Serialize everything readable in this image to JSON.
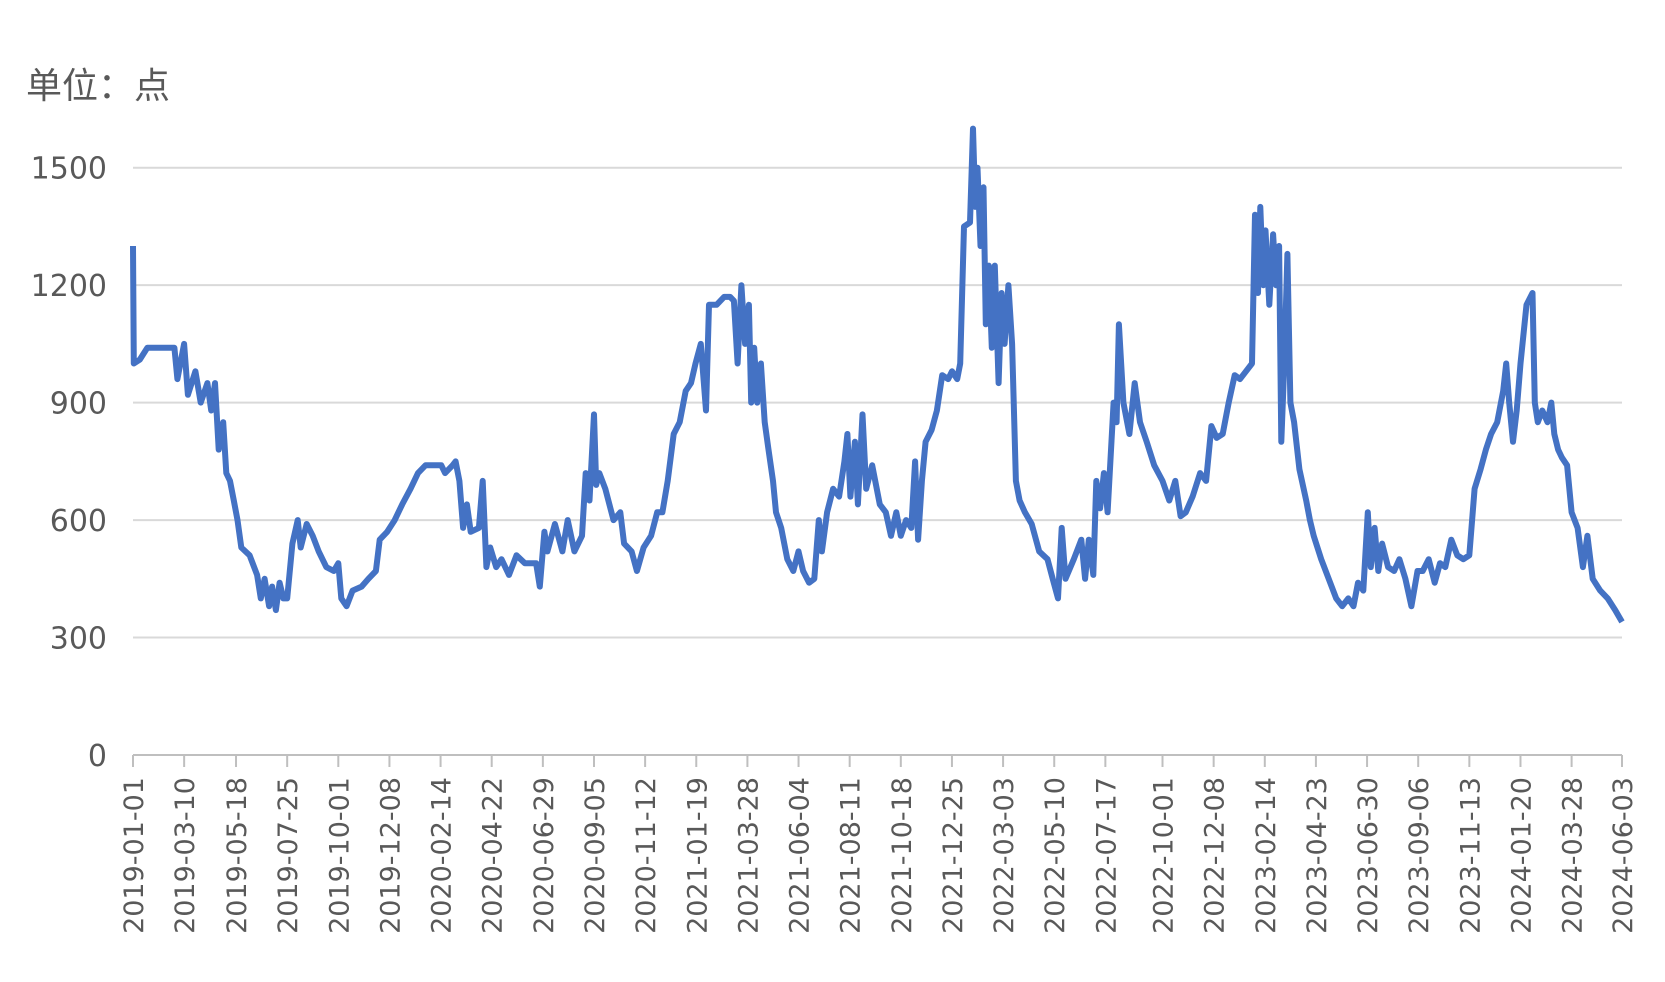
{
  "chart_data": {
    "type": "line",
    "y_label": "单位：点",
    "color": "#4472c4",
    "grid": true,
    "ylim": [
      0,
      1650
    ],
    "yticks": [
      0,
      300,
      600,
      900,
      1200,
      1500
    ],
    "xlim": [
      "2019-01-01",
      "2024-06-03"
    ],
    "xticks": [
      "2019-01-01",
      "2019-03-10",
      "2019-05-18",
      "2019-07-25",
      "2019-10-01",
      "2019-12-08",
      "2020-02-14",
      "2020-04-22",
      "2020-06-29",
      "2020-09-05",
      "2020-11-12",
      "2021-01-19",
      "2021-03-28",
      "2021-06-04",
      "2021-08-11",
      "2021-10-18",
      "2021-12-25",
      "2022-03-03",
      "2022-05-10",
      "2022-07-17",
      "2022-10-01",
      "2022-12-08",
      "2023-02-14",
      "2023-04-23",
      "2023-06-30",
      "2023-09-06",
      "2023-11-13",
      "2024-01-20",
      "2024-03-28",
      "2024-06-03"
    ],
    "x": [
      "2019-01-01",
      "2019-01-02",
      "2019-01-10",
      "2019-01-20",
      "2019-02-10",
      "2019-02-25",
      "2019-03-01",
      "2019-03-10",
      "2019-03-15",
      "2019-03-25",
      "2019-04-01",
      "2019-04-10",
      "2019-04-15",
      "2019-04-20",
      "2019-04-25",
      "2019-05-01",
      "2019-05-05",
      "2019-05-10",
      "2019-05-15",
      "2019-05-20",
      "2019-05-25",
      "2019-06-05",
      "2019-06-15",
      "2019-06-20",
      "2019-06-25",
      "2019-07-01",
      "2019-07-05",
      "2019-07-10",
      "2019-07-15",
      "2019-07-20",
      "2019-07-25",
      "2019-08-01",
      "2019-08-08",
      "2019-08-12",
      "2019-08-20",
      "2019-08-28",
      "2019-09-05",
      "2019-09-15",
      "2019-09-25",
      "2019-10-01",
      "2019-10-05",
      "2019-10-12",
      "2019-10-20",
      "2019-11-01",
      "2019-11-10",
      "2019-11-20",
      "2019-11-25",
      "2019-12-05",
      "2019-12-15",
      "2019-12-25",
      "2020-01-05",
      "2020-01-15",
      "2020-01-25",
      "2020-02-05",
      "2020-02-15",
      "2020-02-20",
      "2020-03-01",
      "2020-03-05",
      "2020-03-10",
      "2020-03-15",
      "2020-03-20",
      "2020-03-25",
      "2020-04-05",
      "2020-04-10",
      "2020-04-15",
      "2020-04-20",
      "2020-04-28",
      "2020-05-05",
      "2020-05-15",
      "2020-05-25",
      "2020-06-05",
      "2020-06-20",
      "2020-06-25",
      "2020-07-01",
      "2020-07-05",
      "2020-07-15",
      "2020-07-25",
      "2020-08-01",
      "2020-08-10",
      "2020-08-20",
      "2020-08-25",
      "2020-08-30",
      "2020-09-05",
      "2020-09-08",
      "2020-09-12",
      "2020-09-20",
      "2020-10-01",
      "2020-10-10",
      "2020-10-15",
      "2020-10-25",
      "2020-11-01",
      "2020-11-10",
      "2020-11-20",
      "2020-11-28",
      "2020-12-05",
      "2020-12-12",
      "2020-12-20",
      "2020-12-28",
      "2021-01-05",
      "2021-01-12",
      "2021-01-18",
      "2021-01-25",
      "2021-02-01",
      "2021-02-05",
      "2021-02-15",
      "2021-02-25",
      "2021-03-05",
      "2021-03-10",
      "2021-03-15",
      "2021-03-20",
      "2021-03-25",
      "2021-03-30",
      "2021-04-02",
      "2021-04-06",
      "2021-04-10",
      "2021-04-15",
      "2021-04-20",
      "2021-04-25",
      "2021-05-01",
      "2021-05-05",
      "2021-05-12",
      "2021-05-20",
      "2021-05-28",
      "2021-06-04",
      "2021-06-10",
      "2021-06-18",
      "2021-06-25",
      "2021-07-01",
      "2021-07-05",
      "2021-07-12",
      "2021-07-20",
      "2021-07-28",
      "2021-08-04",
      "2021-08-08",
      "2021-08-12",
      "2021-08-18",
      "2021-08-22",
      "2021-08-28",
      "2021-09-02",
      "2021-09-10",
      "2021-09-20",
      "2021-09-28",
      "2021-10-05",
      "2021-10-12",
      "2021-10-18",
      "2021-10-25",
      "2021-11-01",
      "2021-11-06",
      "2021-11-10",
      "2021-11-15",
      "2021-11-20",
      "2021-11-28",
      "2021-12-05",
      "2021-12-12",
      "2021-12-20",
      "2021-12-25",
      "2022-01-01",
      "2022-01-05",
      "2022-01-10",
      "2022-01-18",
      "2022-01-22",
      "2022-01-25",
      "2022-01-28",
      "2022-02-01",
      "2022-02-05",
      "2022-02-08",
      "2022-02-12",
      "2022-02-16",
      "2022-02-20",
      "2022-02-25",
      "2022-03-01",
      "2022-03-05",
      "2022-03-10",
      "2022-03-15",
      "2022-03-20",
      "2022-03-25",
      "2022-04-01",
      "2022-04-10",
      "2022-04-20",
      "2022-05-01",
      "2022-05-08",
      "2022-05-15",
      "2022-05-20",
      "2022-05-25",
      "2022-06-05",
      "2022-06-15",
      "2022-06-20",
      "2022-06-25",
      "2022-07-01",
      "2022-07-05",
      "2022-07-10",
      "2022-07-15",
      "2022-07-20",
      "2022-07-28",
      "2022-08-01",
      "2022-08-04",
      "2022-08-10",
      "2022-08-18",
      "2022-08-25",
      "2022-09-01",
      "2022-09-10",
      "2022-09-20",
      "2022-10-01",
      "2022-10-10",
      "2022-10-18",
      "2022-10-25",
      "2022-11-01",
      "2022-11-10",
      "2022-11-20",
      "2022-11-28",
      "2022-12-05",
      "2022-12-12",
      "2022-12-20",
      "2022-12-28",
      "2023-01-05",
      "2023-01-12",
      "2023-01-20",
      "2023-01-28",
      "2023-02-01",
      "2023-02-05",
      "2023-02-08",
      "2023-02-12",
      "2023-02-15",
      "2023-02-20",
      "2023-02-25",
      "2023-03-01",
      "2023-03-05",
      "2023-03-08",
      "2023-03-12",
      "2023-03-16",
      "2023-03-20",
      "2023-03-25",
      "2023-04-01",
      "2023-04-10",
      "2023-04-15",
      "2023-04-20",
      "2023-04-30",
      "2023-05-10",
      "2023-05-20",
      "2023-05-28",
      "2023-06-05",
      "2023-06-12",
      "2023-06-18",
      "2023-06-25",
      "2023-07-01",
      "2023-07-05",
      "2023-07-10",
      "2023-07-15",
      "2023-07-20",
      "2023-07-28",
      "2023-08-05",
      "2023-08-12",
      "2023-08-20",
      "2023-08-28",
      "2023-09-05",
      "2023-09-12",
      "2023-09-20",
      "2023-09-28",
      "2023-10-05",
      "2023-10-12",
      "2023-10-20",
      "2023-10-28",
      "2023-11-05",
      "2023-11-13",
      "2023-11-20",
      "2023-11-28",
      "2023-12-05",
      "2023-12-12",
      "2023-12-20",
      "2023-12-28",
      "2024-01-01",
      "2024-01-05",
      "2024-01-10",
      "2024-01-15",
      "2024-01-20",
      "2024-01-28",
      "2024-02-05",
      "2024-02-08",
      "2024-02-12",
      "2024-02-18",
      "2024-02-25",
      "2024-03-01",
      "2024-03-05",
      "2024-03-10",
      "2024-03-15",
      "2024-03-22",
      "2024-03-28",
      "2024-04-05",
      "2024-04-12",
      "2024-04-18",
      "2024-04-25",
      "2024-05-05",
      "2024-05-15",
      "2024-05-25",
      "2024-06-03"
    ],
    "values": [
      1300,
      1000,
      1010,
      1040,
      1040,
      1040,
      960,
      1050,
      920,
      980,
      900,
      950,
      880,
      950,
      780,
      850,
      720,
      700,
      650,
      600,
      530,
      510,
      460,
      400,
      450,
      380,
      430,
      370,
      440,
      400,
      400,
      540,
      600,
      530,
      590,
      560,
      520,
      480,
      470,
      490,
      400,
      380,
      420,
      430,
      450,
      470,
      550,
      570,
      600,
      640,
      680,
      720,
      740,
      740,
      740,
      720,
      740,
      750,
      700,
      580,
      640,
      570,
      580,
      700,
      480,
      530,
      480,
      500,
      460,
      510,
      490,
      490,
      430,
      570,
      520,
      590,
      520,
      600,
      520,
      560,
      720,
      650,
      870,
      690,
      720,
      680,
      600,
      620,
      540,
      520,
      470,
      530,
      560,
      620,
      620,
      700,
      820,
      850,
      930,
      950,
      1000,
      1050,
      880,
      1150,
      1150,
      1170,
      1170,
      1160,
      1000,
      1200,
      1050,
      1150,
      900,
      1040,
      900,
      1000,
      850,
      780,
      700,
      620,
      580,
      500,
      470,
      520,
      470,
      440,
      450,
      600,
      520,
      620,
      680,
      660,
      750,
      820,
      660,
      800,
      640,
      870,
      680,
      740,
      640,
      620,
      560,
      620,
      560,
      600,
      580,
      750,
      550,
      700,
      800,
      830,
      880,
      970,
      960,
      980,
      960,
      1000,
      1350,
      1360,
      1600,
      1400,
      1500,
      1300,
      1450,
      1100,
      1250,
      1040,
      1250,
      950,
      1180,
      1050,
      1200,
      1050,
      700,
      650,
      620,
      590,
      520,
      500,
      450,
      400,
      580,
      450,
      500,
      550,
      450,
      550,
      460,
      700,
      630,
      720,
      620,
      900,
      850,
      1100,
      900,
      820,
      950,
      850,
      800,
      740,
      700,
      650,
      700,
      610,
      620,
      660,
      720,
      700,
      840,
      810,
      820,
      900,
      970,
      960,
      980,
      1000,
      1380,
      1180,
      1400,
      1200,
      1340,
      1150,
      1330,
      1200,
      1300,
      800,
      1000,
      1280,
      900,
      850,
      730,
      650,
      600,
      560,
      500,
      450,
      400,
      380,
      400,
      380,
      440,
      420,
      620,
      480,
      580,
      470,
      540,
      480,
      470,
      500,
      450,
      380,
      470,
      470,
      500,
      440,
      490,
      480,
      550,
      510,
      500,
      510,
      680,
      730,
      780,
      820,
      850,
      930,
      1000,
      900,
      800,
      880,
      1000,
      1150,
      1180,
      900,
      850,
      880,
      850,
      900,
      820,
      780,
      760,
      740,
      620,
      580,
      480,
      560,
      450,
      420,
      400,
      370,
      340
    ]
  }
}
